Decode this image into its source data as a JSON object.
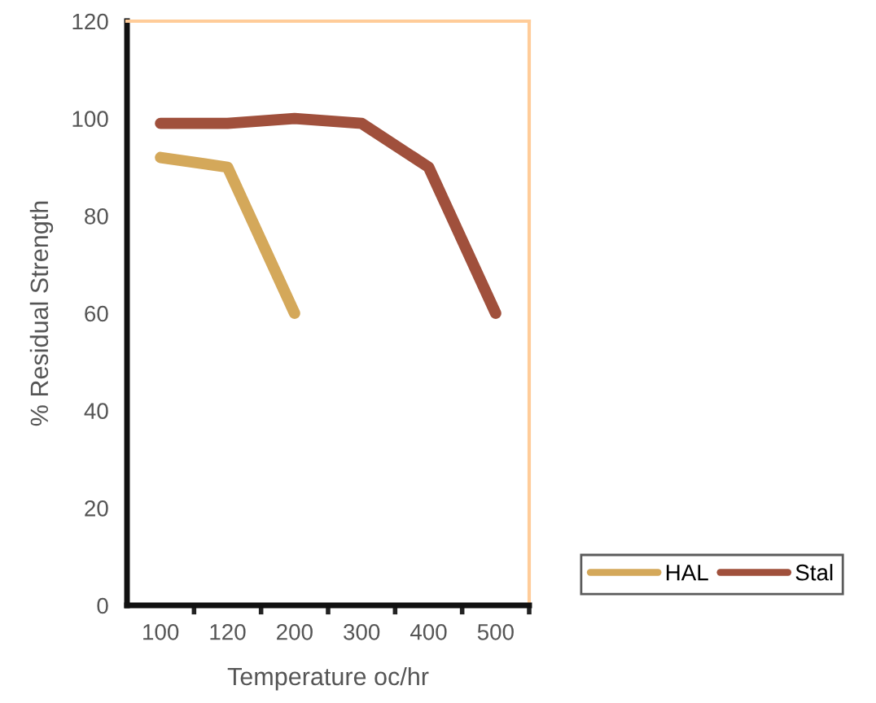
{
  "chart_data": {
    "type": "line",
    "xlabel": "Temperature oc/hr",
    "ylabel": "% Residual Strength",
    "categories": [
      "100",
      "120",
      "200",
      "300",
      "400",
      "500"
    ],
    "series": [
      {
        "name": "HAL",
        "color": "#d4a85a",
        "values": [
          92,
          90,
          60,
          null,
          null,
          null
        ]
      },
      {
        "name": "Stal",
        "color": "#a0503c",
        "values": [
          99,
          99,
          100,
          99,
          90,
          60
        ]
      }
    ],
    "ylim": [
      0,
      120
    ],
    "yticks": [
      0,
      20,
      40,
      60,
      80,
      100,
      120
    ],
    "grid": false,
    "legend": "bottom right",
    "line_style": "solid"
  }
}
